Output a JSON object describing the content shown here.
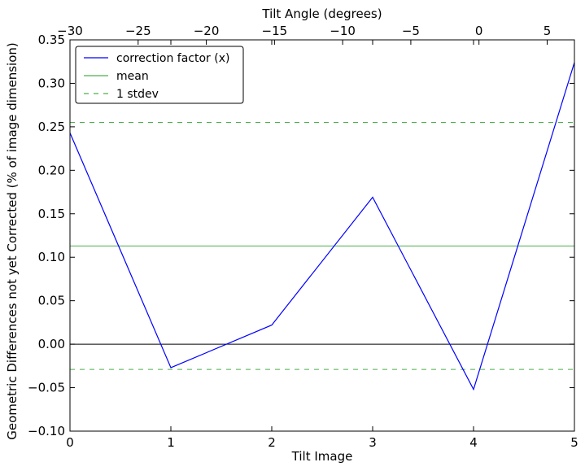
{
  "chart_data": {
    "type": "line",
    "x": [
      0,
      1,
      2,
      3,
      4,
      5
    ],
    "xlabel": "Tilt Image",
    "ylabel": "Geometric Differences not yet Corrected (% of image dimension)",
    "top_xlabel": "Tilt Angle (degrees)",
    "xlim": [
      0,
      5
    ],
    "ylim": [
      -0.1,
      0.35
    ],
    "top_xlim": [
      -30,
      7
    ],
    "x_ticks": [
      "0",
      "1",
      "2",
      "3",
      "4",
      "5"
    ],
    "y_ticks": [
      "−0.10",
      "−0.05",
      "0.00",
      "0.05",
      "0.10",
      "0.15",
      "0.20",
      "0.25",
      "0.30",
      "0.35"
    ],
    "top_ticks": [
      "−30",
      "−25",
      "−20",
      "−15",
      "−10",
      "−5",
      "0",
      "5"
    ],
    "grid": false,
    "legend_position": "top-left",
    "series": [
      {
        "name": "correction factor (x)",
        "color": "#0000ff",
        "style": "solid",
        "values": [
          0.243,
          -0.027,
          0.022,
          0.169,
          -0.052,
          0.324
        ]
      }
    ],
    "hlines": [
      {
        "name": "mean",
        "value": 0.113,
        "color": "#4caf4c",
        "style": "solid"
      },
      {
        "name": "1 stdev",
        "value": 0.255,
        "color": "#4caf4c",
        "style": "dashed"
      },
      {
        "name": "",
        "value": -0.029,
        "color": "#4caf4c",
        "style": "dashed"
      },
      {
        "name": "",
        "value": 0.0,
        "color": "#000000",
        "style": "solid"
      }
    ]
  }
}
